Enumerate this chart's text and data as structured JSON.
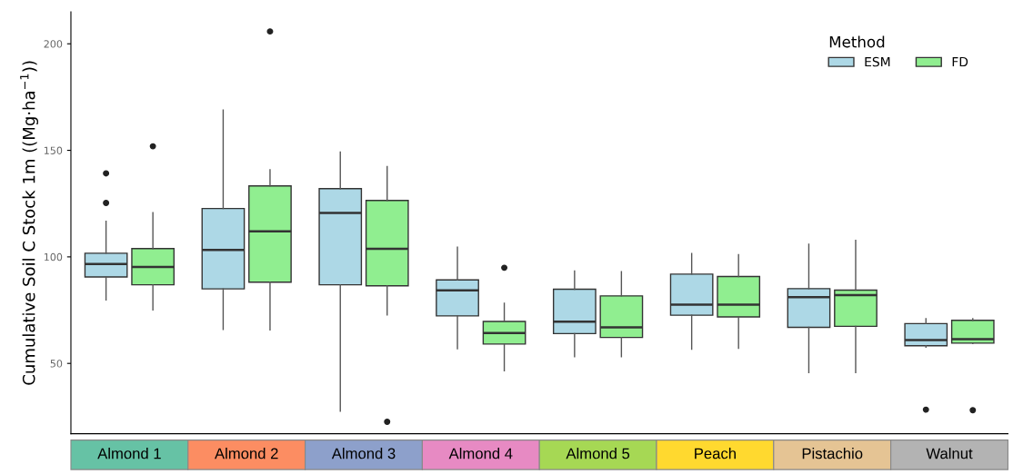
{
  "chart_data": {
    "type": "box",
    "ylabel": "Cumulative Soil C Stock 1m ((Mg·ha$^{−1}$))",
    "legend_title": "Method",
    "legend": "top right",
    "grid": false,
    "categories": [
      "Almond 1",
      "Almond 2",
      "Almond 3",
      "Almond 4",
      "Almond 5",
      "Peach",
      "Pistachio",
      "Walnut"
    ],
    "ylim": [
      17,
      215
    ],
    "yticks": [
      50,
      100,
      150,
      200
    ],
    "series": [
      {
        "name": "ESM",
        "color": "#add8e6",
        "boxes": [
          {
            "low": 79.8,
            "q1": 90.6,
            "median": 96.6,
            "q3": 101.7,
            "high": 116.7,
            "outliers": [
              125.3,
              139.2
            ]
          },
          {
            "low": 65.9,
            "q1": 85,
            "median": 103.3,
            "q3": 122.7,
            "high": 168.9
          },
          {
            "low": 27.6,
            "q1": 86.9,
            "median": 120.6,
            "q3": 132,
            "high": 149.2
          },
          {
            "low": 56.9,
            "q1": 72.3,
            "median": 84.3,
            "q3": 89.2,
            "high": 104.6
          },
          {
            "low": 53.1,
            "q1": 64,
            "median": 69.6,
            "q3": 84.8,
            "high": 93.4
          },
          {
            "low": 56.7,
            "q1": 72.6,
            "median": 77.6,
            "q3": 91.9,
            "high": 101.6
          },
          {
            "low": 45.7,
            "q1": 66.9,
            "median": 81.1,
            "q3": 85.1,
            "high": 105.9
          },
          {
            "low": 57.6,
            "q1": 58.3,
            "median": 61,
            "q3": 68.7,
            "high": 71,
            "outliers": [
              28.3
            ]
          }
        ]
      },
      {
        "name": "FD",
        "color": "#90ee90",
        "boxes": [
          {
            "low": 75.1,
            "q1": 86.9,
            "median": 95.3,
            "q3": 103.9,
            "high": 120.7,
            "outliers": [
              151.9
            ]
          },
          {
            "low": 65.7,
            "q1": 88.1,
            "median": 112,
            "q3": 133.3,
            "high": 140.9,
            "outliers": [
              205.8
            ]
          },
          {
            "low": 72.8,
            "q1": 86.4,
            "median": 103.8,
            "q3": 126.5,
            "high": 142.4,
            "outliers": [
              22.6
            ]
          },
          {
            "low": 46.5,
            "q1": 59.1,
            "median": 64.3,
            "q3": 69.7,
            "high": 78.2,
            "outliers": [
              94.9
            ]
          },
          {
            "low": 53.1,
            "q1": 62.2,
            "median": 66.9,
            "q3": 81.7,
            "high": 93
          },
          {
            "low": 57.1,
            "q1": 71.8,
            "median": 77.6,
            "q3": 90.8,
            "high": 101
          },
          {
            "low": 45.7,
            "q1": 67.4,
            "median": 82,
            "q3": 84.4,
            "high": 107.7
          },
          {
            "low": 59.3,
            "q1": 59.5,
            "median": 61.4,
            "q3": 70.2,
            "high": 71,
            "outliers": [
              28
            ]
          }
        ]
      }
    ]
  }
}
